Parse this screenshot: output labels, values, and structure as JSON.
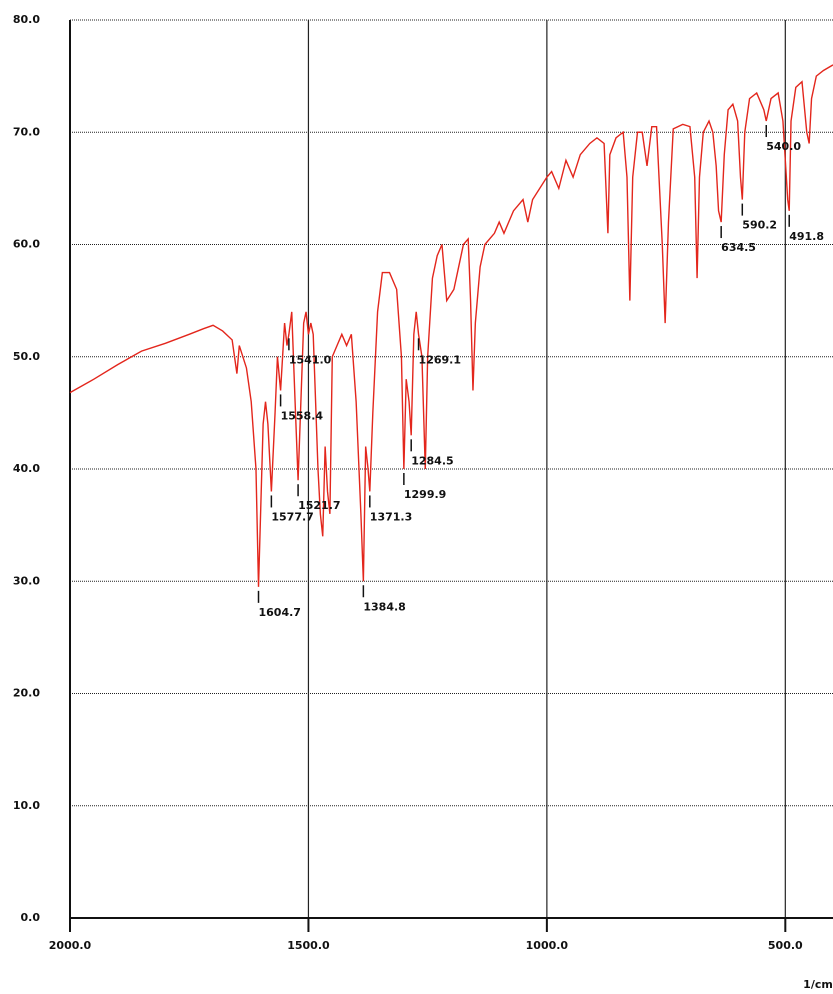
{
  "chart_data": {
    "type": "line",
    "x_unit": "1/cm",
    "xlim": [
      2000,
      400
    ],
    "ylim": [
      0,
      80
    ],
    "xticks": [
      {
        "value": 2000,
        "label": "2000.0"
      },
      {
        "value": 1500,
        "label": "1500.0"
      },
      {
        "value": 1000,
        "label": "1000.0"
      },
      {
        "value": 500,
        "label": "500.0"
      }
    ],
    "yticks": [
      {
        "value": 0,
        "label": "0.0"
      },
      {
        "value": 10,
        "label": "10.0"
      },
      {
        "value": 20,
        "label": "20.0"
      },
      {
        "value": 30,
        "label": "30.0"
      },
      {
        "value": 40,
        "label": "40.0"
      },
      {
        "value": 50,
        "label": "50.0"
      },
      {
        "value": 60,
        "label": "60.0"
      },
      {
        "value": 70,
        "label": "70.0"
      },
      {
        "value": 80,
        "label": "80.0"
      }
    ],
    "grid": true,
    "series": [
      {
        "color": "#e3261c",
        "x": [
          2000,
          1950,
          1900,
          1850,
          1800,
          1750,
          1720,
          1700,
          1680,
          1660,
          1650,
          1645,
          1630,
          1620,
          1610,
          1604.7,
          1595,
          1590,
          1585,
          1577.7,
          1570,
          1565,
          1558.4,
          1550,
          1545,
          1541,
          1535,
          1528,
          1521.7,
          1515,
          1510,
          1505,
          1500,
          1495,
          1490,
          1480,
          1475,
          1470,
          1465,
          1460,
          1455,
          1450,
          1440,
          1430,
          1420,
          1410,
          1400,
          1390,
          1384.8,
          1380,
          1375,
          1371.3,
          1365,
          1355,
          1345,
          1330,
          1315,
          1305,
          1299.9,
          1295,
          1289,
          1284.5,
          1279,
          1274,
          1269.1,
          1262,
          1255,
          1250,
          1240,
          1230,
          1220,
          1210,
          1195,
          1185,
          1175,
          1165,
          1160,
          1155,
          1150,
          1140,
          1130,
          1110,
          1100,
          1090,
          1070,
          1050,
          1040,
          1030,
          1000,
          990,
          975,
          960,
          945,
          930,
          910,
          895,
          880,
          872,
          868,
          855,
          840,
          832,
          826,
          820,
          810,
          800,
          790,
          780,
          770,
          758,
          752,
          745,
          735,
          715,
          700,
          690,
          685,
          680,
          672,
          660,
          652,
          645,
          640,
          634.5,
          628,
          620,
          610,
          600,
          594,
          590.2,
          585,
          575,
          560,
          545,
          540,
          530,
          515,
          505,
          495,
          491.8,
          488,
          478,
          465,
          455,
          450,
          445,
          435,
          420,
          400
        ],
        "values": [
          46.8,
          48,
          49.3,
          50.5,
          51.2,
          52,
          52.5,
          52.8,
          52.3,
          51.5,
          48.5,
          51,
          49,
          46,
          40,
          29.5,
          44,
          46,
          44,
          38,
          45,
          50,
          47,
          53,
          51,
          52,
          54,
          46,
          39,
          47,
          53,
          54,
          52,
          53,
          52,
          40,
          36,
          34,
          42,
          38,
          36,
          50,
          51,
          52,
          51,
          52,
          46,
          36,
          30,
          42,
          40,
          38,
          45,
          54,
          57.5,
          57.5,
          56,
          50,
          40,
          48,
          46,
          43,
          52,
          54,
          52,
          50,
          40,
          50,
          57,
          59,
          60,
          55,
          56,
          58,
          60,
          60.5,
          55,
          47,
          53,
          58,
          60,
          61,
          62,
          61,
          63,
          64,
          62,
          64,
          66,
          66.5,
          65,
          67.5,
          66,
          68,
          69,
          69.5,
          69,
          61,
          68,
          69.5,
          70,
          66,
          55,
          66,
          70,
          70,
          67,
          70.5,
          70.5,
          60,
          53,
          62,
          70.3,
          70.7,
          70.5,
          66,
          57,
          66,
          70,
          71,
          70,
          67,
          63,
          62,
          68,
          72,
          72.5,
          71,
          66,
          64,
          70,
          73,
          73.5,
          72,
          71,
          73,
          73.5,
          71,
          64,
          63,
          71,
          74,
          74.5,
          70,
          69,
          73,
          75,
          75.5,
          76
        ]
      }
    ],
    "peaks": [
      {
        "x": 1604.7,
        "label": "1604.7"
      },
      {
        "x": 1577.7,
        "label": "1577.7"
      },
      {
        "x": 1558.4,
        "label": "1558.4"
      },
      {
        "x": 1541,
        "label": "1541.0"
      },
      {
        "x": 1521.7,
        "label": "1521.7"
      },
      {
        "x": 1384.8,
        "label": "1384.8"
      },
      {
        "x": 1371.3,
        "label": "1371.3"
      },
      {
        "x": 1299.9,
        "label": "1299.9"
      },
      {
        "x": 1284.5,
        "label": "1284.5"
      },
      {
        "x": 1269.1,
        "label": "1269.1"
      },
      {
        "x": 634.5,
        "label": "634.5"
      },
      {
        "x": 590.2,
        "label": "590.2"
      },
      {
        "x": 540,
        "label": "540.0"
      },
      {
        "x": 491.8,
        "label": "491.8"
      }
    ]
  }
}
